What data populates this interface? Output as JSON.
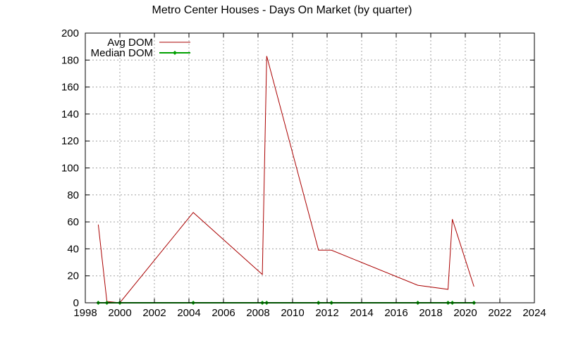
{
  "chart_data": {
    "type": "line",
    "title": "Metro Center Houses - Days On Market (by quarter)",
    "xlabel": "",
    "ylabel": "",
    "xlim": [
      1998,
      2024
    ],
    "ylim": [
      0,
      200
    ],
    "xticks": [
      "1998",
      "2000",
      "2002",
      "2004",
      "2006",
      "2008",
      "2010",
      "2012",
      "2014",
      "2016",
      "2018",
      "2020",
      "2022",
      "2024"
    ],
    "yticks": [
      "0",
      "20",
      "40",
      "60",
      "80",
      "100",
      "120",
      "140",
      "160",
      "180",
      "200"
    ],
    "grid": true,
    "legend_position": "top-left",
    "series": [
      {
        "name": "Avg DOM",
        "color": "#aa0000",
        "marker": "none",
        "x": [
          1998.75,
          1999.25,
          2000.0,
          2004.25,
          2008.25,
          2008.5,
          2011.5,
          2012.25,
          2017.25,
          2019.0,
          2019.25,
          2020.5
        ],
        "y": [
          58,
          1,
          0,
          67,
          21,
          183,
          39,
          39,
          13,
          10,
          62,
          12
        ]
      },
      {
        "name": "Median DOM",
        "color": "#00a000",
        "marker": "diamond",
        "x": [
          1998.75,
          1999.25,
          2000.0,
          2004.25,
          2008.25,
          2008.5,
          2011.5,
          2012.25,
          2017.25,
          2019.0,
          2019.25,
          2020.5
        ],
        "y": [
          0,
          0,
          0,
          0,
          0,
          0,
          0,
          0,
          0,
          0,
          0,
          0
        ]
      }
    ]
  }
}
